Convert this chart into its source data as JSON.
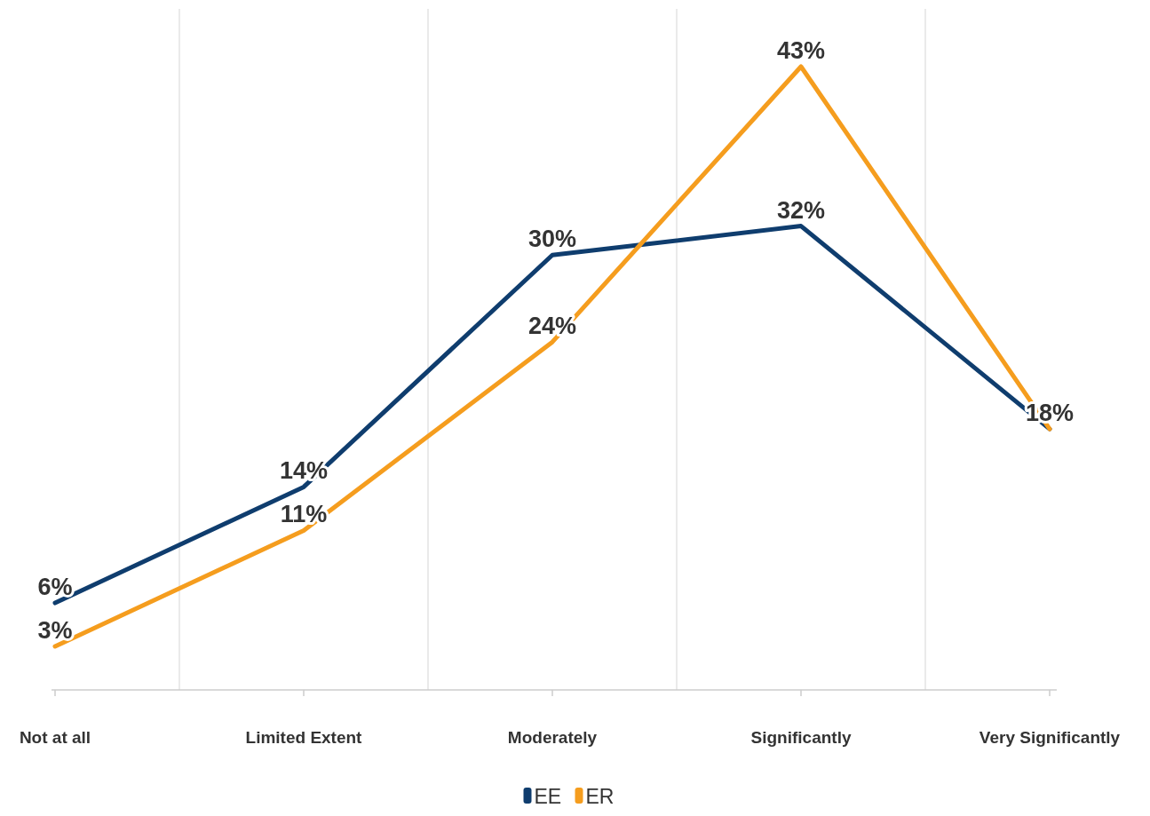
{
  "chart_data": {
    "type": "line",
    "categories": [
      "Not at all",
      "Limited Extent",
      "Moderately",
      "Significantly",
      "Very Significantly"
    ],
    "series": [
      {
        "name": "EE",
        "color": "#0f3d6e",
        "values": [
          6,
          14,
          30,
          32,
          18
        ],
        "value_labels": [
          "6%",
          "14%",
          "30%",
          "32%",
          "18%"
        ]
      },
      {
        "name": "ER",
        "color": "#f59d1e",
        "values": [
          3,
          11,
          24,
          43,
          18
        ],
        "value_labels": [
          "3%",
          "11%",
          "24%",
          "43%",
          null
        ]
      }
    ],
    "grid": "x",
    "legend": "bottom",
    "line_style": "solid"
  }
}
